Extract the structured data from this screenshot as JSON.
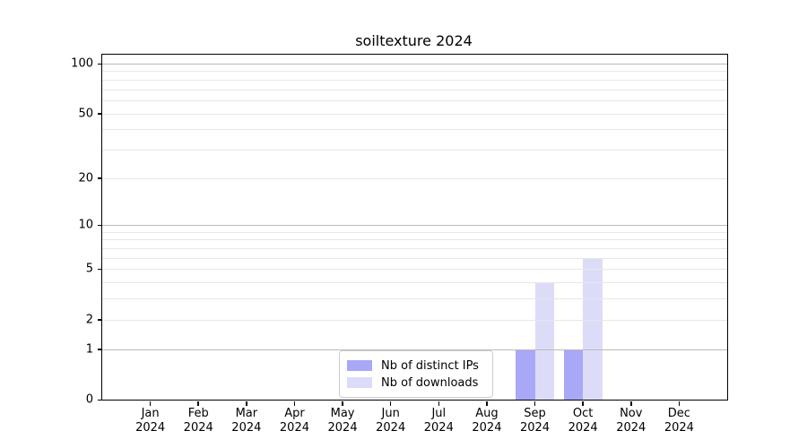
{
  "title": "soiltexture 2024",
  "legend": {
    "items": [
      {
        "label": "Nb of distinct IPs",
        "color": "#a8a8f7"
      },
      {
        "label": "Nb of downloads",
        "color": "#dcdcf9"
      }
    ]
  },
  "chart_data": {
    "type": "bar",
    "title": "soiltexture 2024",
    "x": {
      "months": [
        "Jan",
        "Feb",
        "Mar",
        "Apr",
        "May",
        "Jun",
        "Jul",
        "Aug",
        "Sep",
        "Oct",
        "Nov",
        "Dec"
      ],
      "year": "2024"
    },
    "categories": [
      "Jan 2024",
      "Feb 2024",
      "Mar 2024",
      "Apr 2024",
      "May 2024",
      "Jun 2024",
      "Jul 2024",
      "Aug 2024",
      "Sep 2024",
      "Oct 2024",
      "Nov 2024",
      "Dec 2024"
    ],
    "series": [
      {
        "name": "Nb of distinct IPs",
        "color": "#a8a8f7",
        "values": [
          0,
          0,
          0,
          0,
          0,
          0,
          0,
          0,
          1,
          1,
          0,
          0
        ]
      },
      {
        "name": "Nb of downloads",
        "color": "#dcdcf9",
        "values": [
          0,
          0,
          0,
          0,
          0,
          0,
          0,
          0,
          4,
          6,
          0,
          0
        ]
      }
    ],
    "yaxis": {
      "scale": "log1p",
      "tick_labels": [
        0,
        1,
        2,
        5,
        10,
        20,
        50,
        100
      ],
      "major_gridlines": [
        1,
        10,
        100
      ],
      "minor_gridlines": [
        2,
        3,
        4,
        5,
        6,
        7,
        8,
        9,
        20,
        30,
        40,
        50,
        60,
        70,
        80,
        90
      ],
      "ylim": [
        0,
        113
      ],
      "grid": true
    },
    "legend_position": "lower center"
  },
  "colors": {
    "spine": "#000000",
    "grid_major": "#bbbbbb",
    "grid_minor": "#e7e7e7",
    "background": "#ffffff",
    "text": "#000000"
  }
}
